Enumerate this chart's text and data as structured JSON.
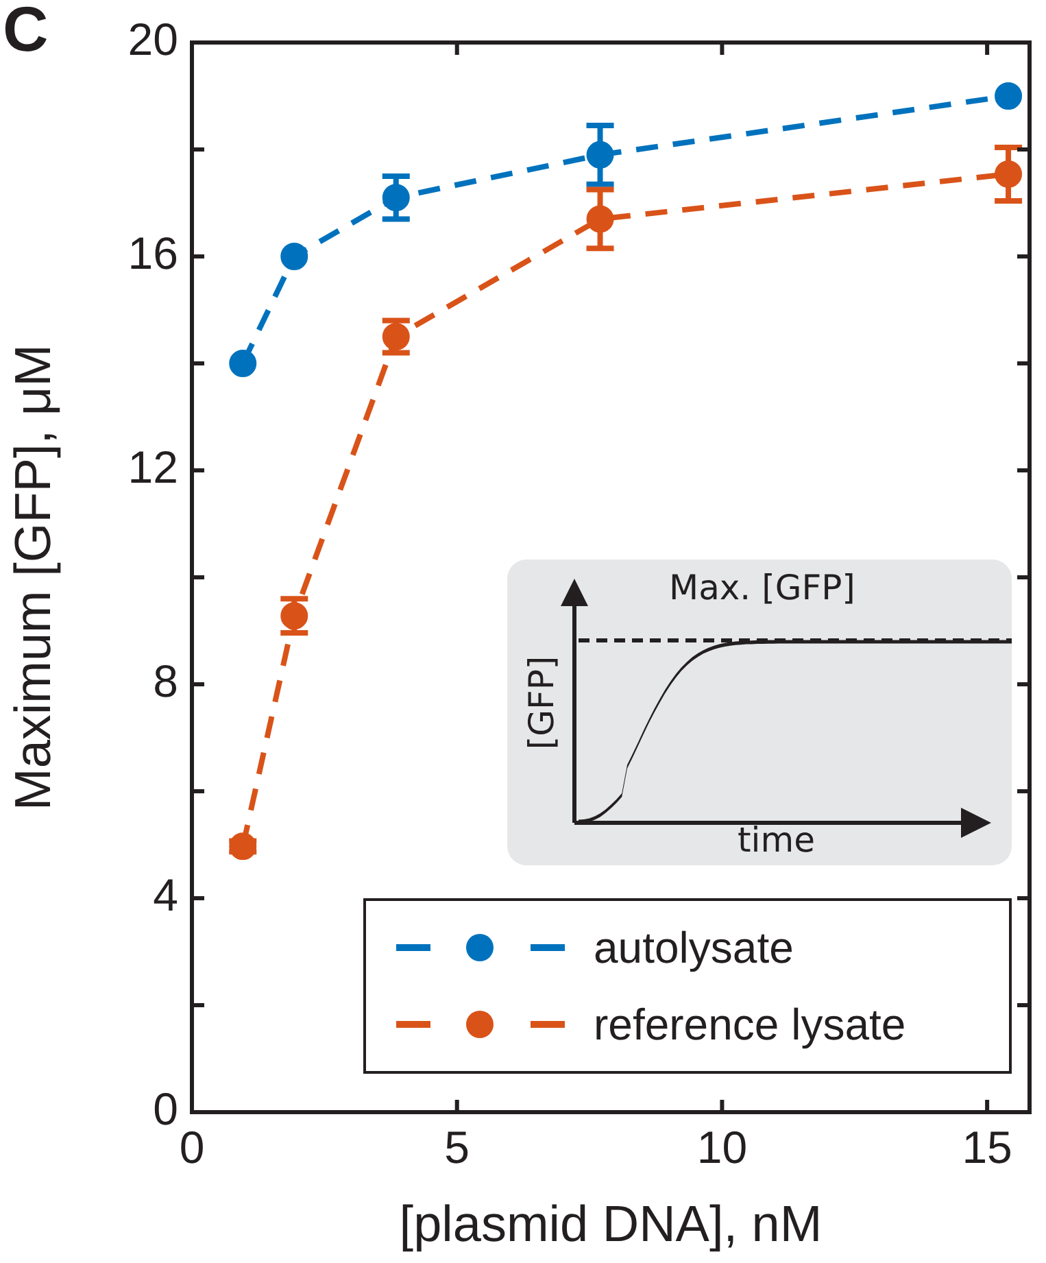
{
  "chart_data": {
    "type": "line",
    "xlabel": "[plasmid DNA], nM",
    "ylabel": "Maximum [GFP], μM",
    "x": [
      0.96,
      1.93,
      3.85,
      7.7,
      15.4
    ],
    "series": [
      {
        "name": "autolysate",
        "color": "#0072bd",
        "values": [
          14.0,
          16.0,
          17.1,
          17.9,
          19.0
        ],
        "errors": [
          null,
          null,
          0.4,
          0.55,
          null
        ]
      },
      {
        "name": "reference lysate",
        "color": "#d95319",
        "values": [
          4.97,
          9.28,
          14.5,
          16.7,
          17.54
        ],
        "errors": [
          0.1,
          0.32,
          0.3,
          0.55,
          0.5
        ]
      }
    ],
    "xlim": [
      0,
      15.8
    ],
    "xticks": [
      0,
      5,
      10,
      15
    ],
    "ylim": [
      0,
      20
    ],
    "yticks": [
      0,
      {
        "value": 2,
        "label": null
      },
      4,
      {
        "value": 6,
        "label": null
      },
      8,
      {
        "value": 10,
        "label": null
      },
      12,
      {
        "value": 14,
        "label": null
      },
      16,
      {
        "value": 18,
        "label": null
      },
      20
    ],
    "grid": false,
    "legend": "bottom right",
    "marker": "circle",
    "line_style": "dashed",
    "annotations": [
      "C",
      "Max. [GFP]",
      "[GFP]",
      "time"
    ]
  }
}
